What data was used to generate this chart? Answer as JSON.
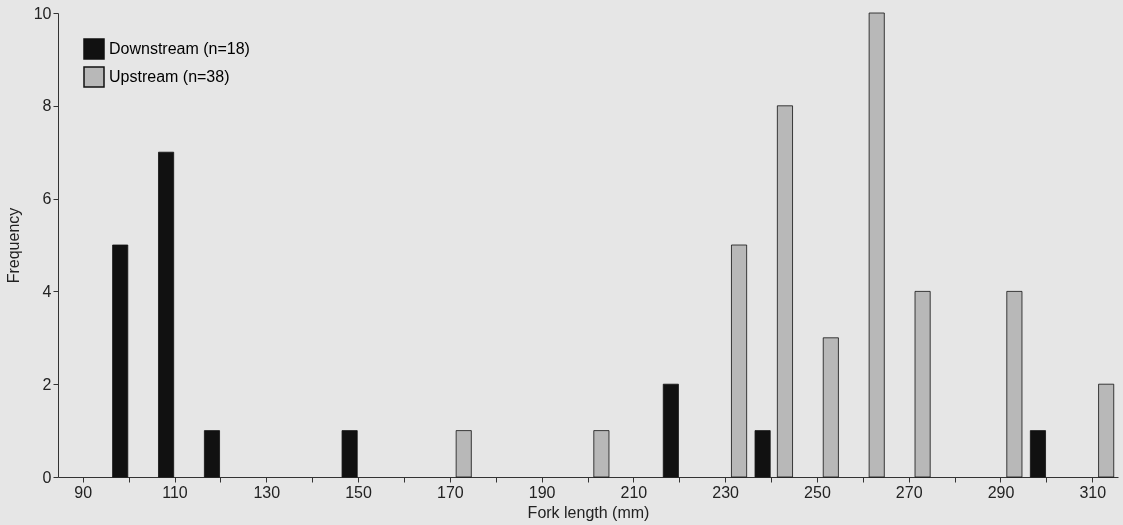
{
  "chart_data": {
    "type": "bar",
    "xlabel": "Fork length (mm)",
    "ylabel": "Frequency",
    "categories": [
      "90",
      null,
      "110",
      null,
      "130",
      null,
      "150",
      null,
      "170",
      null,
      "190",
      null,
      "210",
      null,
      "230",
      null,
      "250",
      null,
      "270",
      null,
      "290",
      null,
      "310"
    ],
    "series": [
      {
        "name": "Downstream (n=18)",
        "color": "#111111",
        "values": [
          0,
          5,
          7,
          1,
          0,
          0,
          1,
          0,
          0,
          0,
          0,
          0,
          0,
          2,
          0,
          1,
          0,
          0,
          0,
          0,
          0,
          1,
          0
        ]
      },
      {
        "name": "Upstream (n=38)",
        "color": "#b8b8b8",
        "values": [
          0,
          0,
          0,
          0,
          0,
          0,
          0,
          0,
          1,
          0,
          0,
          1,
          0,
          0,
          5,
          8,
          3,
          10,
          4,
          0,
          4,
          0,
          2
        ]
      }
    ],
    "ylim": [
      0,
      10
    ],
    "yticks": [
      0,
      2,
      4,
      6,
      8,
      10
    ],
    "grid": false,
    "legend": "top left"
  }
}
